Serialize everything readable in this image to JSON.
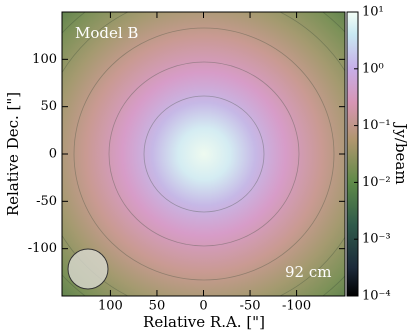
{
  "chart_data": {
    "type": "image",
    "annotations": [
      "Model B",
      "92 cm"
    ],
    "x_label": "Relative R.A. [\"]",
    "y_label": "Relative Dec. [\"]",
    "xlim": [
      152,
      -152
    ],
    "xticks": [
      100,
      50,
      0,
      -50,
      -100
    ],
    "ylim": [
      -150,
      150
    ],
    "yticks": [
      100,
      50,
      0,
      -50,
      -100
    ],
    "colorbar": {
      "label": "Jy/beam",
      "scale": "log",
      "lim": [
        0.0001,
        10
      ],
      "ticks": [
        {
          "value": 10,
          "label": "10¹"
        },
        {
          "value": 1,
          "label": "10⁰"
        },
        {
          "value": 0.1,
          "label": "10⁻¹"
        },
        {
          "value": 0.01,
          "label": "10⁻²"
        },
        {
          "value": 0.001,
          "label": "10⁻³"
        },
        {
          "value": 0.0001,
          "label": "10⁻⁴"
        }
      ]
    }
  }
}
